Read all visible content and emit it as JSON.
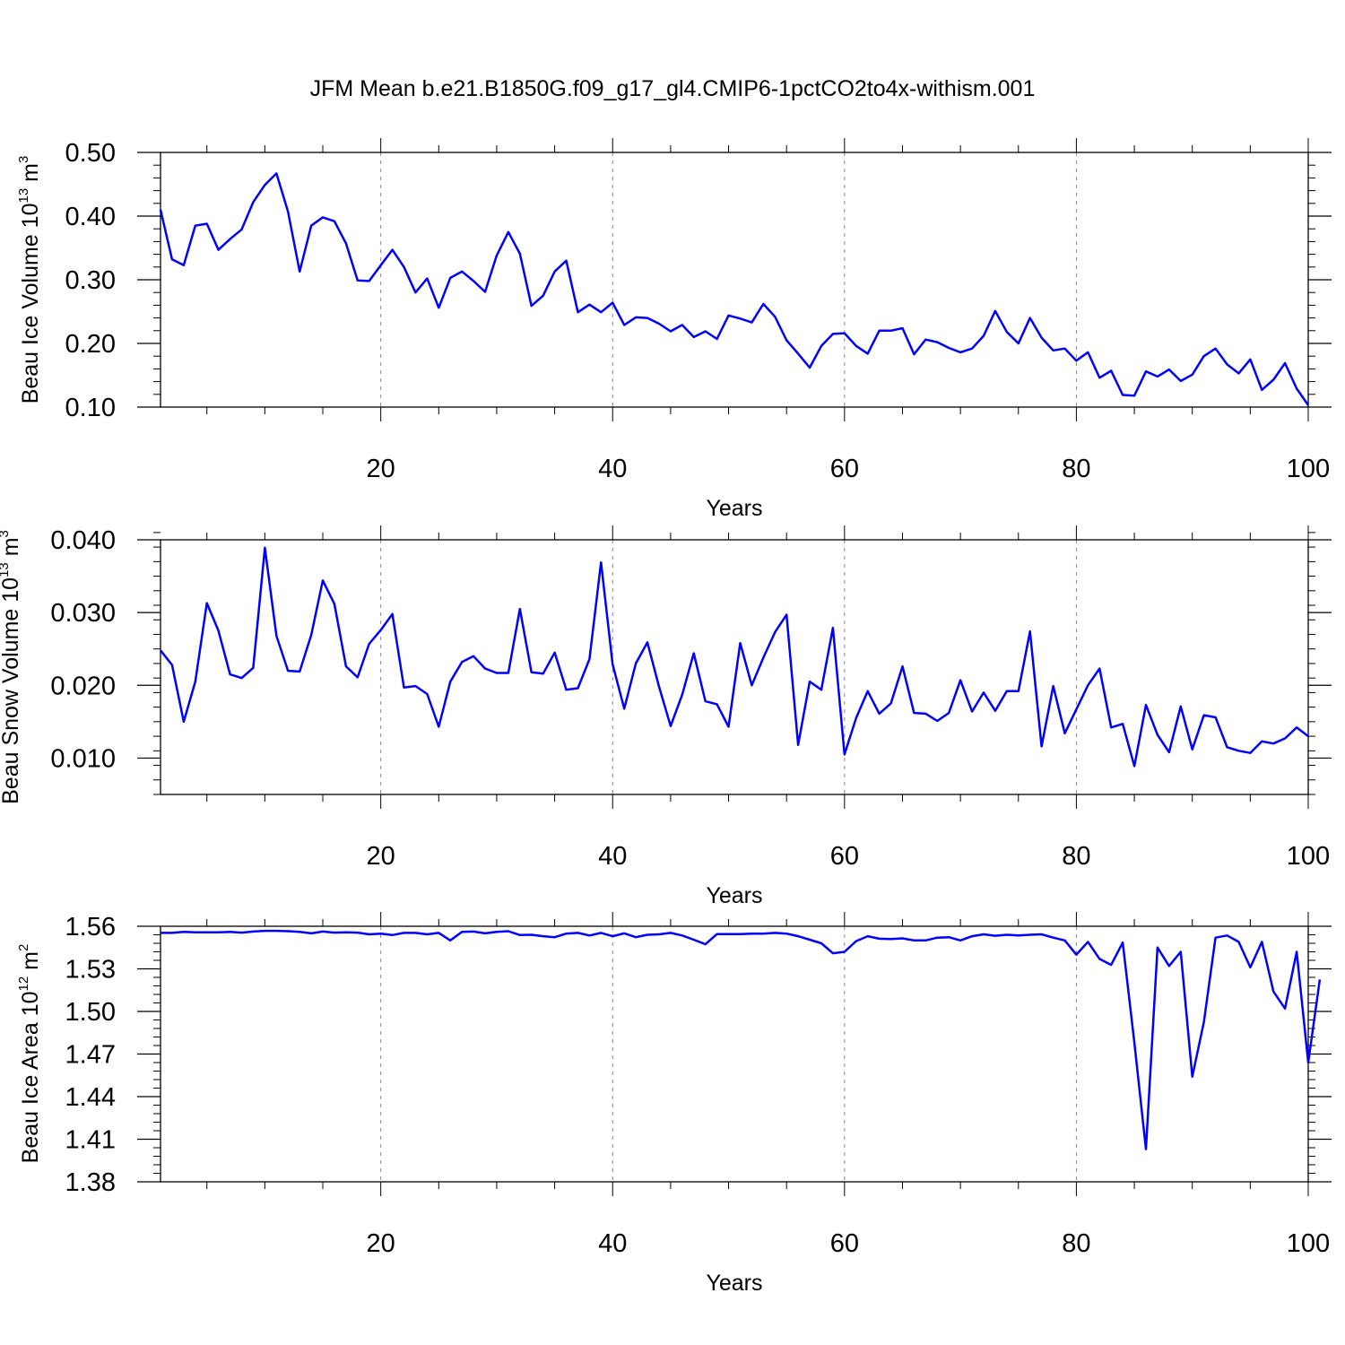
{
  "page_title": "JFM Mean b.e21.B1850G.f09_g17_gl4.CMIP6-1pctCO2to4x-withism.001",
  "colors": {
    "line": "#0000ff",
    "axis": "#000000",
    "grid": "#888888"
  },
  "chart_data": [
    {
      "type": "line",
      "ylabel_main": "Beau Ice Volume 10",
      "ylabel_exp": "13",
      "ylabel_unit": " m",
      "ylabel_unit_exp": "3",
      "xlabel": "Years",
      "xlim": [
        1,
        100
      ],
      "ylim": [
        0.1,
        0.5
      ],
      "x_ticks": [
        20,
        40,
        60,
        80,
        100
      ],
      "y_ticks": [
        0.1,
        0.2,
        0.3,
        0.4,
        0.5
      ],
      "y_tick_labels": [
        "0.10",
        "0.20",
        "0.30",
        "0.40",
        "0.50"
      ],
      "vgrid_at": [
        20,
        40,
        60,
        80
      ],
      "y_minor_step": 0.02,
      "series": [
        {
          "values": [
            0.41,
            0.332,
            0.323,
            0.385,
            0.388,
            0.347,
            0.364,
            0.379,
            0.422,
            0.449,
            0.467,
            0.407,
            0.313,
            0.385,
            0.398,
            0.392,
            0.357,
            0.299,
            0.298,
            0.323,
            0.347,
            0.32,
            0.28,
            0.302,
            0.256,
            0.303,
            0.313,
            0.298,
            0.281,
            0.338,
            0.375,
            0.341,
            0.259,
            0.275,
            0.313,
            0.33,
            0.249,
            0.261,
            0.249,
            0.264,
            0.229,
            0.241,
            0.24,
            0.231,
            0.219,
            0.229,
            0.21,
            0.219,
            0.207,
            0.244,
            0.239,
            0.233,
            0.262,
            0.242,
            0.205,
            0.184,
            0.162,
            0.196,
            0.215,
            0.216,
            0.196,
            0.184,
            0.22,
            0.22,
            0.224,
            0.183,
            0.206,
            0.202,
            0.193,
            0.186,
            0.192,
            0.212,
            0.251,
            0.218,
            0.2,
            0.24,
            0.209,
            0.189,
            0.192,
            0.173,
            0.186,
            0.146,
            0.157,
            0.119,
            0.118,
            0.156,
            0.148,
            0.159,
            0.141,
            0.151,
            0.18,
            0.192,
            0.167,
            0.153,
            0.175,
            0.127,
            0.143,
            0.169,
            0.129,
            0.103
          ]
        }
      ]
    },
    {
      "type": "line",
      "ylabel_main": "Beau Snow Volume 10",
      "ylabel_exp": "13",
      "ylabel_unit": " m",
      "ylabel_unit_exp": "3",
      "xlabel": "Years",
      "xlim": [
        1,
        100
      ],
      "ylim": [
        0.005,
        0.04
      ],
      "x_ticks": [
        20,
        40,
        60,
        80,
        100
      ],
      "y_ticks": [
        0.01,
        0.02,
        0.03,
        0.04
      ],
      "y_tick_labels": [
        "0.010",
        "0.020",
        "0.030",
        "0.040"
      ],
      "vgrid_at": [
        20,
        40,
        60,
        80
      ],
      "y_minor_step": 0.002,
      "series": [
        {
          "values": [
            0.0248,
            0.0228,
            0.015,
            0.0205,
            0.0313,
            0.0275,
            0.0215,
            0.021,
            0.0224,
            0.0389,
            0.0268,
            0.022,
            0.0219,
            0.0269,
            0.0344,
            0.0312,
            0.0226,
            0.0211,
            0.0257,
            0.0276,
            0.0298,
            0.0197,
            0.0199,
            0.0188,
            0.0143,
            0.0205,
            0.0232,
            0.024,
            0.0223,
            0.0217,
            0.0217,
            0.0305,
            0.0218,
            0.0216,
            0.0245,
            0.0194,
            0.0196,
            0.0236,
            0.0369,
            0.0229,
            0.0168,
            0.023,
            0.0259,
            0.0198,
            0.0144,
            0.0187,
            0.0244,
            0.0178,
            0.0174,
            0.0143,
            0.0258,
            0.02,
            0.0238,
            0.0273,
            0.0297,
            0.0118,
            0.0205,
            0.0194,
            0.0279,
            0.0105,
            0.0155,
            0.0192,
            0.0161,
            0.0175,
            0.0226,
            0.0162,
            0.0161,
            0.0151,
            0.0162,
            0.0207,
            0.0164,
            0.019,
            0.0165,
            0.0192,
            0.0192,
            0.0274,
            0.0116,
            0.0199,
            0.0134,
            0.0167,
            0.02,
            0.0223,
            0.0142,
            0.0147,
            0.0089,
            0.0173,
            0.0132,
            0.0108,
            0.0171,
            0.0112,
            0.0159,
            0.0156,
            0.0115,
            0.011,
            0.0107,
            0.0123,
            0.012,
            0.0127,
            0.0142,
            0.013
          ]
        }
      ]
    },
    {
      "type": "line",
      "ylabel_main": "Beau Ice Area 10",
      "ylabel_exp": "12",
      "ylabel_unit": " m",
      "ylabel_unit_exp": "2",
      "xlabel": "Years",
      "xlim": [
        1,
        100
      ],
      "ylim": [
        1.38,
        1.56
      ],
      "x_ticks": [
        20,
        40,
        60,
        80,
        100
      ],
      "y_ticks": [
        1.38,
        1.41,
        1.44,
        1.47,
        1.5,
        1.53,
        1.56
      ],
      "y_tick_labels": [
        "1.38",
        "1.41",
        "1.44",
        "1.47",
        "1.50",
        "1.53",
        "1.56"
      ],
      "vgrid_at": [
        20,
        40,
        60,
        80
      ],
      "y_minor_step": 0.006,
      "series": [
        {
          "values": [
            1.5553,
            1.5553,
            1.556,
            1.5558,
            1.5557,
            1.5557,
            1.556,
            1.5555,
            1.5563,
            1.5568,
            1.5568,
            1.5565,
            1.556,
            1.555,
            1.5563,
            1.5555,
            1.5558,
            1.5555,
            1.5543,
            1.5548,
            1.5538,
            1.5553,
            1.5553,
            1.5543,
            1.5553,
            1.55,
            1.556,
            1.5563,
            1.555,
            1.556,
            1.5565,
            1.5538,
            1.554,
            1.553,
            1.5523,
            1.5548,
            1.5553,
            1.5535,
            1.5553,
            1.553,
            1.555,
            1.5523,
            1.554,
            1.5543,
            1.5553,
            1.5535,
            1.5505,
            1.5473,
            1.5545,
            1.5545,
            1.5545,
            1.5548,
            1.5548,
            1.5553,
            1.5548,
            1.553,
            1.5505,
            1.548,
            1.541,
            1.542,
            1.5495,
            1.553,
            1.5512,
            1.551,
            1.5515,
            1.55,
            1.55,
            1.552,
            1.5523,
            1.55,
            1.553,
            1.5543,
            1.5533,
            1.554,
            1.5535,
            1.554,
            1.5543,
            1.552,
            1.55,
            1.54,
            1.549,
            1.537,
            1.5328,
            1.5485,
            1.478,
            1.403,
            1.545,
            1.532,
            1.542,
            1.454,
            1.4925,
            1.552,
            1.5535,
            1.549,
            1.531,
            1.549,
            1.514,
            1.502,
            1.542,
            1.464,
            1.5225
          ]
        }
      ]
    }
  ]
}
